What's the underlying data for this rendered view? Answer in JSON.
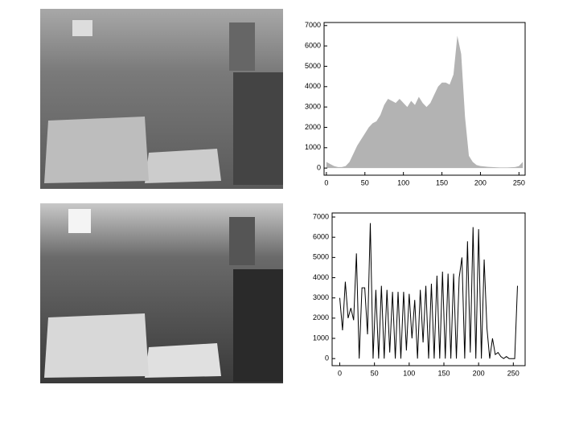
{
  "chart_data": [
    {
      "type": "area",
      "color": "#b3b3b3",
      "x": [
        0,
        5,
        10,
        15,
        20,
        25,
        30,
        35,
        40,
        45,
        50,
        55,
        60,
        65,
        70,
        75,
        80,
        85,
        90,
        95,
        100,
        105,
        110,
        115,
        120,
        125,
        130,
        135,
        140,
        145,
        150,
        155,
        160,
        165,
        170,
        175,
        180,
        185,
        190,
        195,
        200,
        205,
        210,
        215,
        220,
        225,
        230,
        235,
        240,
        245,
        250,
        255
      ],
      "values": [
        300,
        200,
        100,
        50,
        50,
        100,
        300,
        700,
        1100,
        1400,
        1700,
        2000,
        2200,
        2300,
        2600,
        3100,
        3400,
        3300,
        3200,
        3400,
        3200,
        3000,
        3300,
        3100,
        3500,
        3200,
        3000,
        3200,
        3600,
        4000,
        4200,
        4200,
        4100,
        4600,
        6500,
        5600,
        2500,
        600,
        300,
        150,
        100,
        80,
        60,
        50,
        40,
        30,
        30,
        30,
        40,
        50,
        100,
        300
      ],
      "xlim": [
        -3,
        258
      ],
      "ylim": [
        -350,
        7150
      ],
      "xticks": [
        0,
        50,
        100,
        150,
        200,
        250
      ],
      "yticks": [
        0,
        1000,
        2000,
        3000,
        4000,
        5000,
        6000,
        7000
      ]
    },
    {
      "type": "line",
      "color": "#000000",
      "x": [
        0,
        4,
        8,
        12,
        16,
        20,
        24,
        28,
        32,
        36,
        40,
        44,
        48,
        52,
        56,
        60,
        64,
        68,
        72,
        76,
        80,
        84,
        88,
        92,
        96,
        100,
        104,
        108,
        112,
        116,
        120,
        124,
        128,
        132,
        136,
        140,
        144,
        148,
        152,
        156,
        160,
        164,
        168,
        172,
        176,
        180,
        184,
        188,
        192,
        196,
        200,
        204,
        208,
        212,
        216,
        220,
        224,
        228,
        232,
        236,
        240,
        244,
        248,
        252,
        256
      ],
      "values": [
        3000,
        1400,
        3800,
        2000,
        2500,
        1900,
        5200,
        0,
        3500,
        3500,
        1200,
        6700,
        0,
        3400,
        0,
        3600,
        0,
        3400,
        300,
        3300,
        0,
        3300,
        0,
        3300,
        400,
        3200,
        1000,
        2900,
        0,
        3400,
        800,
        3600,
        0,
        3700,
        0,
        4100,
        0,
        4300,
        0,
        4200,
        0,
        4200,
        0,
        4000,
        5000,
        0,
        5800,
        300,
        6500,
        0,
        6400,
        0,
        4900,
        1500,
        0,
        1000,
        200,
        300,
        100,
        0,
        100,
        0,
        0,
        0,
        3600
      ],
      "xlim": [
        -11,
        267
      ],
      "ylim": [
        -350,
        7200
      ],
      "xticks": [
        0,
        50,
        100,
        150,
        200,
        250
      ],
      "yticks": [
        0,
        1000,
        2000,
        3000,
        4000,
        5000,
        6000,
        7000
      ]
    }
  ]
}
